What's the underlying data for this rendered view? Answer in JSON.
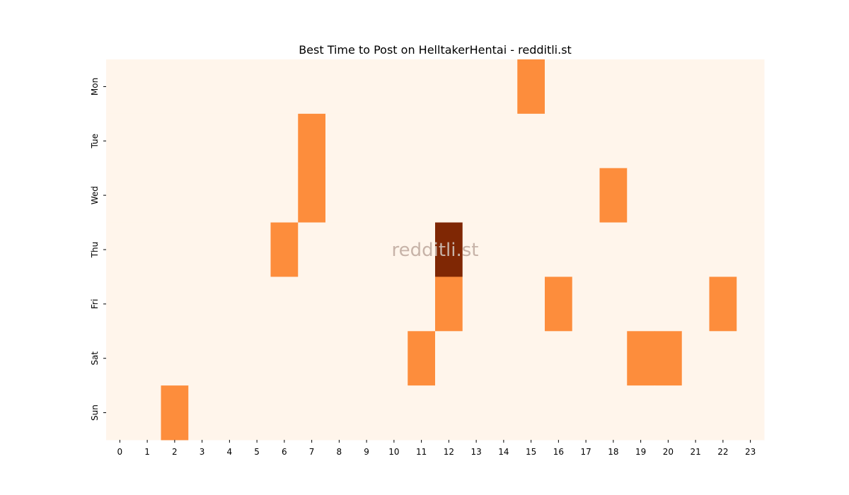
{
  "chart_data": {
    "type": "heatmap",
    "title": "Best Time to Post on HelltakerHentai - redditli.st",
    "watermark": "redditli.st",
    "xlabel": "",
    "ylabel": "",
    "x_categories": [
      "0",
      "1",
      "2",
      "3",
      "4",
      "5",
      "6",
      "7",
      "8",
      "9",
      "10",
      "11",
      "12",
      "13",
      "14",
      "15",
      "16",
      "17",
      "18",
      "19",
      "20",
      "21",
      "22",
      "23"
    ],
    "y_categories": [
      "Mon",
      "Tue",
      "Wed",
      "Thu",
      "Fri",
      "Sat",
      "Sun"
    ],
    "values": [
      [
        0,
        0,
        0,
        0,
        0,
        0,
        0,
        0,
        0,
        0,
        0,
        0,
        0,
        0,
        0,
        1,
        0,
        0,
        0,
        0,
        0,
        0,
        0,
        0
      ],
      [
        0,
        0,
        0,
        0,
        0,
        0,
        0,
        1,
        0,
        0,
        0,
        0,
        0,
        0,
        0,
        0,
        0,
        0,
        0,
        0,
        0,
        0,
        0,
        0
      ],
      [
        0,
        0,
        0,
        0,
        0,
        0,
        0,
        1,
        0,
        0,
        0,
        0,
        0,
        0,
        0,
        0,
        0,
        0,
        1,
        0,
        0,
        0,
        0,
        0
      ],
      [
        0,
        0,
        0,
        0,
        0,
        0,
        1,
        0,
        0,
        0,
        0,
        0,
        2,
        0,
        0,
        0,
        0,
        0,
        0,
        0,
        0,
        0,
        0,
        0
      ],
      [
        0,
        0,
        0,
        0,
        0,
        0,
        0,
        0,
        0,
        0,
        0,
        0,
        1,
        0,
        0,
        0,
        1,
        0,
        0,
        0,
        0,
        0,
        1,
        0
      ],
      [
        0,
        0,
        0,
        0,
        0,
        0,
        0,
        0,
        0,
        0,
        0,
        1,
        0,
        0,
        0,
        0,
        0,
        0,
        0,
        1,
        1,
        0,
        0,
        0
      ],
      [
        0,
        0,
        1,
        0,
        0,
        0,
        0,
        0,
        0,
        0,
        0,
        0,
        0,
        0,
        0,
        0,
        0,
        0,
        0,
        0,
        0,
        0,
        0,
        0
      ]
    ],
    "colormap": [
      "#fff5eb",
      "#fd8d3c",
      "#7f2704"
    ],
    "watermark_color": "#c7b3a8",
    "legend": "none",
    "grid": false
  }
}
